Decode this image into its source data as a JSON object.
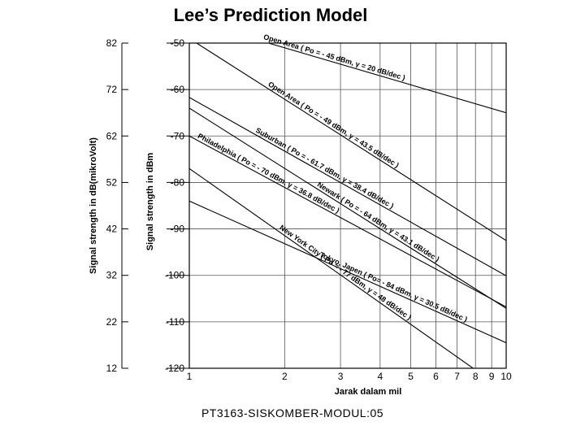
{
  "slide": {
    "title": "Lee’s Prediction Model",
    "footer": "PT3163-SISKOMBER-MODUL:05"
  },
  "chart_data": {
    "type": "line",
    "x_scale": "log",
    "xlabel": "Jarak dalam mil",
    "xlim": [
      1,
      10
    ],
    "x_ticks": [
      1,
      2,
      3,
      4,
      5,
      6,
      7,
      8,
      9,
      10
    ],
    "y_left_label": "Signal strength in dB(mikroVolt)",
    "y_left_ticks": [
      82,
      72,
      62,
      52,
      42,
      32,
      22,
      12
    ],
    "y_right_label": "Signal strength in dBm",
    "y_right_ticks": [
      -50,
      -60,
      -70,
      -80,
      -90,
      -100,
      -110,
      -120
    ],
    "ylim_dbm": [
      -120,
      -50
    ],
    "grid": true,
    "series": [
      {
        "name": "Open Area ( Po = - 45  dBm, γ = 20 dB/dec )",
        "po": -45,
        "gamma": 20
      },
      {
        "name": "Open Area ( Po = - 49  dBm, γ = 43.5 dB/dec )",
        "po": -49,
        "gamma": 43.5
      },
      {
        "name": "Suburban ( Po = - 61.7  dBm, γ = 38.4 dB/dec )",
        "po": -61.7,
        "gamma": 38.4
      },
      {
        "name": "Newark  ( Po = - 64  dBm, γ = 43.1 dB/dec )",
        "po": -64,
        "gamma": 43.1
      },
      {
        "name": "Philadelphia  ( Po = - 70  dBm, γ = 36.8 dB/dec )",
        "po": -70,
        "gamma": 36.8
      },
      {
        "name": "Tokyo, Japen  ( Po= - 84  dBm, γ = 30.5 dB/dec )",
        "po": -84,
        "gamma": 30.5
      },
      {
        "name": "New York City  ( Po = - 77  dBm, γ = 48 dB/dec )",
        "po": -77,
        "gamma": 48
      }
    ]
  }
}
